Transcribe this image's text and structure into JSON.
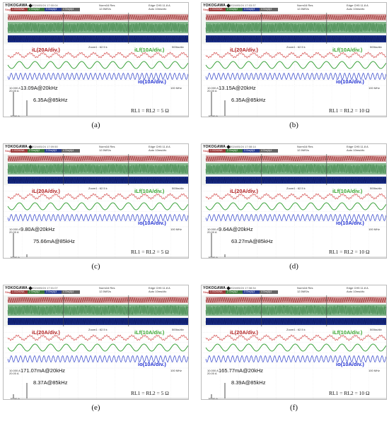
{
  "scope": {
    "brand": "YOKOGAWA",
    "status": "Stopped",
    "ch_labels": [
      "1 GCN1NA",
      "2 Gm(A)2",
      "3 Gm(A)3",
      "4 Gm(A)4"
    ],
    "timebase": "10ms/div",
    "sample": "500ks/div",
    "hz_range": "100 MHz",
    "norm": "Norm16 Res",
    "edge": "Edge CH5",
    "trig": "11.8 A",
    "rate": "12.5MS/s",
    "mode": "Auto",
    "zoom": "Zoom1 : 62.5 k",
    "fft_top": "10.000 A",
    "fft_div": "20.00 A",
    "fft_bottom": "-10.00 A"
  },
  "labels": {
    "il": "iL(20A/div.)",
    "iLf": "iLf(10A/div.)",
    "io": "io(10A/div.)"
  },
  "panels": [
    {
      "caption": "(a)",
      "timestamp": "2024/05/24 17:00:04",
      "ann1": "13.09A@20kHz",
      "ann2": "6.35A@85kHz",
      "load": "RL1 = RL2 = 5 Ω"
    },
    {
      "caption": "(b)",
      "timestamp": "2024/05/24 17:03:37",
      "ann1": "13.15A@20kHz",
      "ann2": "6.35A@85kHz",
      "load": "RL1 = RL2 = 10 Ω"
    },
    {
      "caption": "(c)",
      "timestamp": "2024/05/24 17:09:50",
      "ann1": "9.80A@20kHz",
      "ann2": "75.66mA@85kHz",
      "load": "RL1 = RL2 = 5 Ω"
    },
    {
      "caption": "(d)",
      "timestamp": "2024/05/24 17:08:14",
      "ann1": "9.64A@20kHz",
      "ann2": "63.27mA@85kHz",
      "load": "RL1 = RL2 = 10 Ω"
    },
    {
      "caption": "(e)",
      "timestamp": "2024/05/24 17:01:07",
      "ann1": "171.07mA@20kHz",
      "ann2": "8.37A@85kHz",
      "load": "RL1 = RL2 = 5 Ω"
    },
    {
      "caption": "(f)",
      "timestamp": "2024/05/24 17:08:34",
      "ann1": "165.77mA@20kHz",
      "ann2": "8.39A@85kHz",
      "load": "RL1 = RL2 = 10 Ω"
    }
  ]
}
